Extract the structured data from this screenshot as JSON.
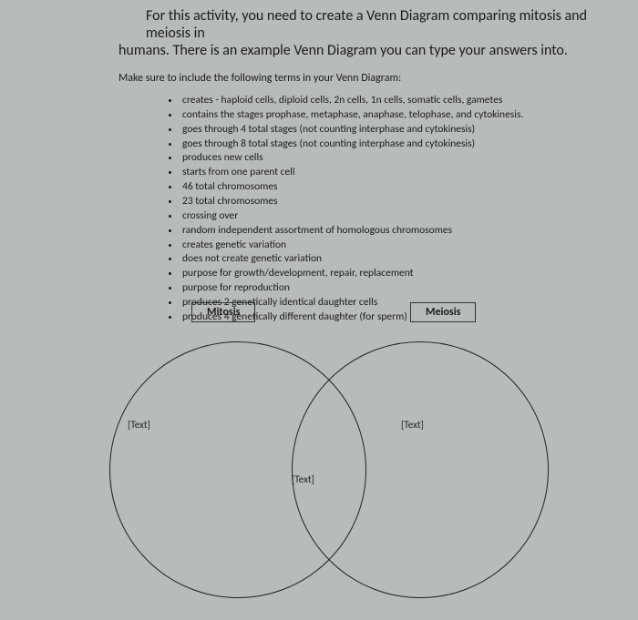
{
  "intro": {
    "line1": "For this activity, you need to create a Venn Diagram comparing mitosis and meiosis in",
    "line2": "humans. There is an example Venn Diagram you can type your answers into."
  },
  "makeSure": "Make sure to include the following terms in your Venn Diagram:",
  "terms": [
    "creates - haploid cells, diploid cells, 2n cells, 1n cells, somatic cells, gametes",
    "contains the stages prophase, metaphase, anaphase, telophase, and cytokinesis.",
    "goes through 4 total stages (not counting interphase and cytokinesis)",
    "goes through 8 total stages (not counting interphase and cytokinesis)",
    "produces new cells",
    "starts from one parent cell",
    "46 total chromosomes",
    "23 total chromosomes",
    "crossing over",
    "random independent assortment of homologous chromosomes",
    "creates genetic variation",
    "does not create genetic variation",
    "purpose for growth/development, repair, replacement",
    "purpose for reproduction",
    "produces 2 genetically identical daughter cells",
    "produces 4 genetically different daughter (for sperm)"
  ],
  "venn": {
    "labelLeft": "Mitosis",
    "labelRight": "Meiosis",
    "placeholderLeft": "[Text]",
    "placeholderCenter": "[Text]",
    "placeholderRight": "[Text]",
    "circle_stroke": "#222222",
    "circle_stroke_width": 1.5,
    "label_border": "#333333",
    "background": "#b8bbbc"
  }
}
